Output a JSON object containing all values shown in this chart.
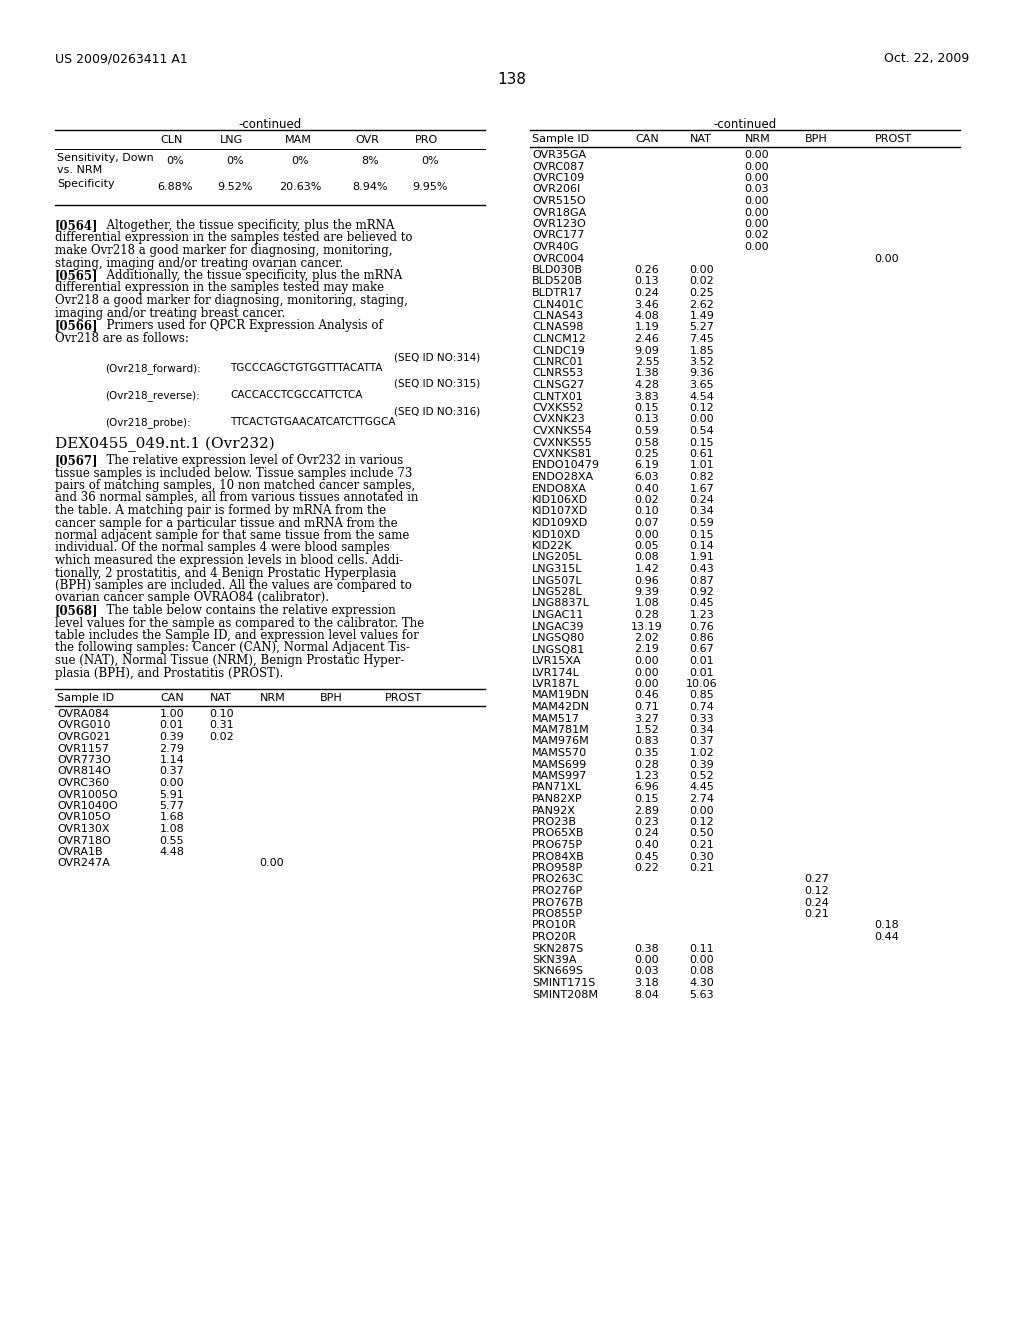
{
  "patent_number": "US 2009/0263411 A1",
  "date": "Oct. 22, 2009",
  "page_number": "138",
  "top_left_continued": "-continued",
  "top_right_continued": "-continued",
  "top_table": {
    "col_headers": [
      "",
      "CLN",
      "LNG",
      "MAM",
      "OVR",
      "PRO"
    ],
    "rows": [
      [
        "Sensitivity, Down\nvs. NRM",
        "0%",
        "0%",
        "0%",
        "8%",
        "0%"
      ],
      [
        "Specificity",
        "6.88%",
        "9.52%",
        "20.63%",
        "8.94%",
        "9.95%"
      ]
    ]
  },
  "para_0564": "[0564]   Altogether, the tissue specificity, plus the mRNA differential expression in the samples tested are believed to make Ovr218 a good marker for diagnosing, monitoring, staging, imaging and/or treating ovarian cancer.",
  "para_0565": "[0565]   Additionally, the tissue specificity, plus the mRNA differential expression in the samples tested may make Ovr218 a good marker for diagnosing, monitoring, staging, imaging and/or treating breast cancer.",
  "para_0566": "[0566]   Primers used for QPCR Expression Analysis of Ovr218 are as follows:",
  "seq1_id": "(SEQ ID NO:314)",
  "seq1_label": "(Ovr218_forward):",
  "seq1_seq": "TGCCCAGCTGTGGTTTACATTA",
  "seq2_id": "(SEQ ID NO:315)",
  "seq2_label": "(Ovr218_reverse):",
  "seq2_seq": "CACCACCTCGCCATTCTCA",
  "seq3_id": "(SEQ ID NO:316)",
  "seq3_label": "(Ovr218_probe):",
  "seq3_seq": "TTCACTGTGAACATCATCTTGGCA",
  "dex_header": "DEX0455_049.nt.1 (Ovr232)",
  "para_0567_lines": [
    "[0567]   The relative expression level of Ovr232 in various",
    "tissue samples is included below. Tissue samples include 73",
    "pairs of matching samples, 10 non matched cancer samples,",
    "and 36 normal samples, all from various tissues annotated in",
    "the table. A matching pair is formed by mRNA from the",
    "cancer sample for a particular tissue and mRNA from the",
    "normal adjacent sample for that same tissue from the same",
    "individual. Of the normal samples 4 were blood samples",
    "which measured the expression levels in blood cells. Addi-",
    "tionally, 2 prostatitis, and 4 Benign Prostatic Hyperplasia",
    "(BPH) samples are included. All the values are compared to",
    "ovarian cancer sample OVRAO84 (calibrator)."
  ],
  "para_0568_lines": [
    "[0568]   The table below contains the relative expression",
    "level values for the sample as compared to the calibrator. The",
    "table includes the Sample ID, and expression level values for",
    "the following samples: Cancer (CAN), Normal Adjacent Tis-",
    "sue (NAT), Normal Tissue (NRM), Benign Prostatic Hyper-",
    "plasia (BPH), and Prostatitis (PROST)."
  ],
  "left_table_headers": [
    "Sample ID",
    "CAN",
    "NAT",
    "NRM",
    "BPH",
    "PROST"
  ],
  "left_table_rows": [
    [
      "OVRA084",
      "1.00",
      "0.10",
      "",
      "",
      ""
    ],
    [
      "OVRG010",
      "0.01",
      "0.31",
      "",
      "",
      ""
    ],
    [
      "OVRG021",
      "0.39",
      "0.02",
      "",
      "",
      ""
    ],
    [
      "OVR1157",
      "2.79",
      "",
      "",
      "",
      ""
    ],
    [
      "OVR773O",
      "1.14",
      "",
      "",
      "",
      ""
    ],
    [
      "OVR814O",
      "0.37",
      "",
      "",
      "",
      ""
    ],
    [
      "OVRC360",
      "0.00",
      "",
      "",
      "",
      ""
    ],
    [
      "OVR1005O",
      "5.91",
      "",
      "",
      "",
      ""
    ],
    [
      "OVR1040O",
      "5.77",
      "",
      "",
      "",
      ""
    ],
    [
      "OVR105O",
      "1.68",
      "",
      "",
      "",
      ""
    ],
    [
      "OVR130X",
      "1.08",
      "",
      "",
      "",
      ""
    ],
    [
      "OVR718O",
      "0.55",
      "",
      "",
      "",
      ""
    ],
    [
      "OVRA1B",
      "4.48",
      "",
      "",
      "",
      ""
    ],
    [
      "OVR247A",
      "",
      "",
      "0.00",
      "",
      ""
    ]
  ],
  "right_table_headers": [
    "Sample ID",
    "CAN",
    "NAT",
    "NRM",
    "BPH",
    "PROST"
  ],
  "right_table_rows": [
    [
      "OVR35GA",
      "",
      "",
      "0.00",
      "",
      ""
    ],
    [
      "OVRC087",
      "",
      "",
      "0.00",
      "",
      ""
    ],
    [
      "OVRC109",
      "",
      "",
      "0.00",
      "",
      ""
    ],
    [
      "OVR206I",
      "",
      "",
      "0.03",
      "",
      ""
    ],
    [
      "OVR515O",
      "",
      "",
      "0.00",
      "",
      ""
    ],
    [
      "OVR18GA",
      "",
      "",
      "0.00",
      "",
      ""
    ],
    [
      "OVR123O",
      "",
      "",
      "0.00",
      "",
      ""
    ],
    [
      "OVRC177",
      "",
      "",
      "0.02",
      "",
      ""
    ],
    [
      "OVR40G",
      "",
      "",
      "0.00",
      "",
      ""
    ],
    [
      "OVRC004",
      "",
      "",
      "",
      "",
      "0.00"
    ],
    [
      "BLD030B",
      "0.26",
      "0.00",
      "",
      "",
      ""
    ],
    [
      "BLD520B",
      "0.13",
      "0.02",
      "",
      "",
      ""
    ],
    [
      "BLDTR17",
      "0.24",
      "0.25",
      "",
      "",
      ""
    ],
    [
      "CLN401C",
      "3.46",
      "2.62",
      "",
      "",
      ""
    ],
    [
      "CLNAS43",
      "4.08",
      "1.49",
      "",
      "",
      ""
    ],
    [
      "CLNAS98",
      "1.19",
      "5.27",
      "",
      "",
      ""
    ],
    [
      "CLNCM12",
      "2.46",
      "7.45",
      "",
      "",
      ""
    ],
    [
      "CLNDC19",
      "9.09",
      "1.85",
      "",
      "",
      ""
    ],
    [
      "CLNRC01",
      "2.55",
      "3.52",
      "",
      "",
      ""
    ],
    [
      "CLNRS53",
      "1.38",
      "9.36",
      "",
      "",
      ""
    ],
    [
      "CLNSG27",
      "4.28",
      "3.65",
      "",
      "",
      ""
    ],
    [
      "CLNTX01",
      "3.83",
      "4.54",
      "",
      "",
      ""
    ],
    [
      "CVXKS52",
      "0.15",
      "0.12",
      "",
      "",
      ""
    ],
    [
      "CVXNK23",
      "0.13",
      "0.00",
      "",
      "",
      ""
    ],
    [
      "CVXNKS54",
      "0.59",
      "0.54",
      "",
      "",
      ""
    ],
    [
      "CVXNKS55",
      "0.58",
      "0.15",
      "",
      "",
      ""
    ],
    [
      "CVXNKS81",
      "0.25",
      "0.61",
      "",
      "",
      ""
    ],
    [
      "ENDO10479",
      "6.19",
      "1.01",
      "",
      "",
      ""
    ],
    [
      "ENDO28XA",
      "6.03",
      "0.82",
      "",
      "",
      ""
    ],
    [
      "ENDO8XA",
      "0.40",
      "1.67",
      "",
      "",
      ""
    ],
    [
      "KID106XD",
      "0.02",
      "0.24",
      "",
      "",
      ""
    ],
    [
      "KID107XD",
      "0.10",
      "0.34",
      "",
      "",
      ""
    ],
    [
      "KID109XD",
      "0.07",
      "0.59",
      "",
      "",
      ""
    ],
    [
      "KID10XD",
      "0.00",
      "0.15",
      "",
      "",
      ""
    ],
    [
      "KID22K",
      "0.05",
      "0.14",
      "",
      "",
      ""
    ],
    [
      "LNG205L",
      "0.08",
      "1.91",
      "",
      "",
      ""
    ],
    [
      "LNG315L",
      "1.42",
      "0.43",
      "",
      "",
      ""
    ],
    [
      "LNG507L",
      "0.96",
      "0.87",
      "",
      "",
      ""
    ],
    [
      "LNG528L",
      "9.39",
      "0.92",
      "",
      "",
      ""
    ],
    [
      "LNG8837L",
      "1.08",
      "0.45",
      "",
      "",
      ""
    ],
    [
      "LNGAC11",
      "0.28",
      "1.23",
      "",
      "",
      ""
    ],
    [
      "LNGAC39",
      "13.19",
      "0.76",
      "",
      "",
      ""
    ],
    [
      "LNGSQ80",
      "2.02",
      "0.86",
      "",
      "",
      ""
    ],
    [
      "LNGSQ81",
      "2.19",
      "0.67",
      "",
      "",
      ""
    ],
    [
      "LVR15XA",
      "0.00",
      "0.01",
      "",
      "",
      ""
    ],
    [
      "LVR174L",
      "0.00",
      "0.01",
      "",
      "",
      ""
    ],
    [
      "LVR187L",
      "0.00",
      "10.06",
      "",
      "",
      ""
    ],
    [
      "MAM19DN",
      "0.46",
      "0.85",
      "",
      "",
      ""
    ],
    [
      "MAM42DN",
      "0.71",
      "0.74",
      "",
      "",
      ""
    ],
    [
      "MAM517",
      "3.27",
      "0.33",
      "",
      "",
      ""
    ],
    [
      "MAM781M",
      "1.52",
      "0.34",
      "",
      "",
      ""
    ],
    [
      "MAM976M",
      "0.83",
      "0.37",
      "",
      "",
      ""
    ],
    [
      "MAMS570",
      "0.35",
      "1.02",
      "",
      "",
      ""
    ],
    [
      "MAMS699",
      "0.28",
      "0.39",
      "",
      "",
      ""
    ],
    [
      "MAMS997",
      "1.23",
      "0.52",
      "",
      "",
      ""
    ],
    [
      "PAN71XL",
      "6.96",
      "4.45",
      "",
      "",
      ""
    ],
    [
      "PAN82XP",
      "0.15",
      "2.74",
      "",
      "",
      ""
    ],
    [
      "PAN92X",
      "2.89",
      "0.00",
      "",
      "",
      ""
    ],
    [
      "PRO23B",
      "0.23",
      "0.12",
      "",
      "",
      ""
    ],
    [
      "PRO65XB",
      "0.24",
      "0.50",
      "",
      "",
      ""
    ],
    [
      "PRO675P",
      "0.40",
      "0.21",
      "",
      "",
      ""
    ],
    [
      "PRO84XB",
      "0.45",
      "0.30",
      "",
      "",
      ""
    ],
    [
      "PRO958P",
      "0.22",
      "0.21",
      "",
      "",
      ""
    ],
    [
      "PRO263C",
      "",
      "",
      "",
      "0.27",
      ""
    ],
    [
      "PRO276P",
      "",
      "",
      "",
      "0.12",
      ""
    ],
    [
      "PRO767B",
      "",
      "",
      "",
      "0.24",
      ""
    ],
    [
      "PRO855P",
      "",
      "",
      "",
      "0.21",
      ""
    ],
    [
      "PRO10R",
      "",
      "",
      "",
      "",
      "0.18"
    ],
    [
      "PRO20R",
      "",
      "",
      "",
      "",
      "0.44"
    ],
    [
      "SKN287S",
      "0.38",
      "0.11",
      "",
      "",
      ""
    ],
    [
      "SKN39A",
      "0.00",
      "0.00",
      "",
      "",
      ""
    ],
    [
      "SKN669S",
      "0.03",
      "0.08",
      "",
      "",
      ""
    ],
    [
      "SMINT171S",
      "3.18",
      "4.30",
      "",
      "",
      ""
    ],
    [
      "SMINT208M",
      "8.04",
      "5.63",
      "",
      "",
      ""
    ]
  ]
}
